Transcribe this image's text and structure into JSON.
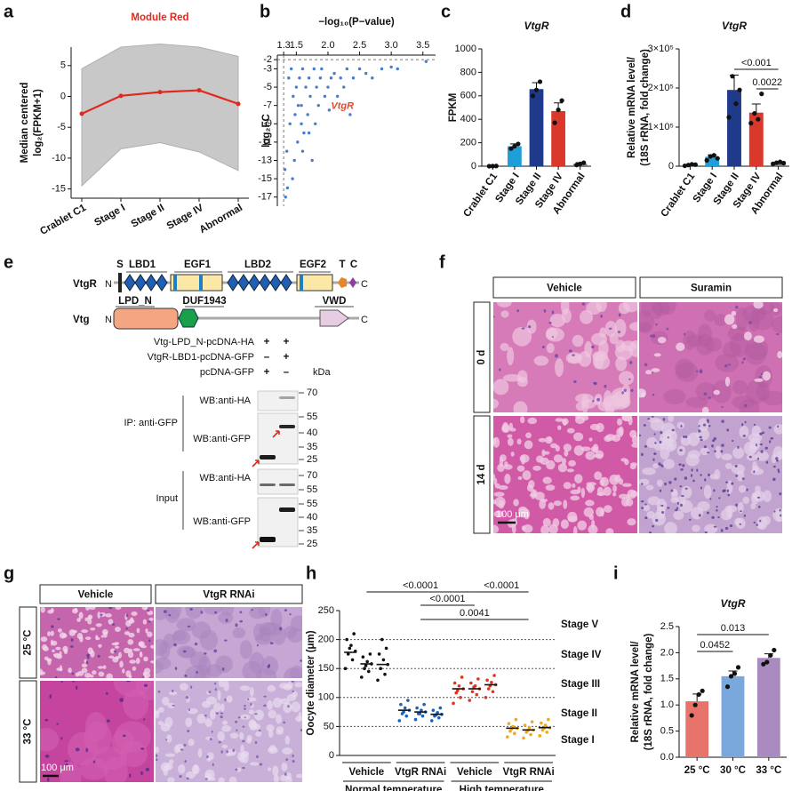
{
  "panel_labels": [
    "a",
    "b",
    "c",
    "d",
    "e",
    "f",
    "g",
    "h",
    "i"
  ],
  "chart_data": [
    {
      "type": "line",
      "title": "Module Red",
      "ylabel": [
        "Median centered",
        "log₂(FPKM+1)"
      ],
      "categories": [
        "Crablet C1",
        "Stage I",
        "Stage II",
        "Stage IV",
        "Abnormal"
      ],
      "values": [
        -2.8,
        0.1,
        0.7,
        1.0,
        -1.2
      ],
      "color": "#e0281e",
      "envelope": {
        "upper": [
          4.5,
          8,
          8.5,
          8,
          6.5
        ],
        "lower": [
          -14.5,
          -8.5,
          -7.5,
          -9,
          -12
        ],
        "color": "#c8c8c8"
      },
      "ylim": [
        -16.5,
        8
      ],
      "yticks": [
        -15,
        -10,
        -5,
        0,
        5
      ]
    },
    {
      "type": "scatter",
      "xlabel": "−log₁₀(P−value)",
      "ylabel": [
        "log₂FC"
      ],
      "x": [
        1.32,
        1.35,
        1.38,
        1.4,
        1.42,
        1.45,
        1.48,
        1.5,
        1.52,
        1.55,
        1.58,
        1.6,
        1.62,
        1.65,
        1.68,
        1.7,
        1.72,
        1.75,
        1.78,
        1.8,
        1.82,
        1.85,
        1.88,
        1.9,
        1.95,
        2.0,
        2.05,
        2.1,
        2.15,
        2.2,
        2.25,
        2.3,
        2.4,
        2.5,
        2.6,
        2.7,
        2.85,
        3.0,
        3.1,
        3.55,
        1.36,
        1.44,
        1.53,
        1.6,
        1.7,
        1.33,
        1.47,
        1.58,
        2.02,
        2.35
      ],
      "y": [
        -14,
        -12,
        -4,
        -9,
        -3,
        -6,
        -8,
        -5,
        -11,
        -4,
        -7,
        -3,
        -10,
        -5,
        -8,
        -4,
        -6,
        -13,
        -3,
        -9,
        -5,
        -7,
        -4,
        -3,
        -6,
        -5,
        -4,
        -3.5,
        -6,
        -4,
        -5,
        -3,
        -4,
        -3,
        -3.5,
        -4,
        -3,
        -2.8,
        -3,
        -2.2,
        -16,
        -15,
        -7,
        -12,
        -10,
        -17,
        -13,
        -9,
        -7.5,
        -8
      ],
      "color": "#4a7cc9",
      "annotation": "VtgR",
      "annotation_color": "#e04a2a",
      "thresholds": {
        "x": 1.3,
        "y": -2
      },
      "xlim": [
        1.2,
        3.7
      ],
      "xticks": [
        1.3,
        1.5,
        {
          "value": 2,
          "label": "2.0"
        },
        2.5,
        {
          "value": 3,
          "label": "3.0"
        },
        3.5
      ],
      "ylim": [
        -18,
        -1.5
      ],
      "yticks": [
        -2,
        -3,
        -5,
        -7,
        -9,
        -11,
        -13,
        -15,
        -17
      ]
    },
    {
      "type": "bar",
      "title": "VtgR",
      "ylabel": [
        "FPKM"
      ],
      "categories": [
        "Crablet C1",
        "Stage I",
        "Stage II",
        "Stage IV",
        "Abnormal"
      ],
      "values": [
        1,
        170,
        657,
        470,
        20
      ],
      "errors": [
        1,
        20,
        55,
        70,
        10
      ],
      "points": [
        [
          0,
          1,
          2
        ],
        [
          150,
          170,
          190
        ],
        [
          600,
          650,
          720
        ],
        [
          370,
          480,
          560
        ],
        [
          10,
          20,
          30
        ]
      ],
      "colors": [
        "#7f7f7f",
        "#1f9fd9",
        "#1f3a8a",
        "#d9382b",
        "#7f7f7f"
      ],
      "ylim": [
        0,
        1000
      ],
      "yticks": [
        0,
        200,
        400,
        600,
        800,
        1000
      ]
    },
    {
      "type": "bar",
      "title": "VtgR",
      "ylabel": [
        "Relative mRNA level/",
        "(18S rRNA, fold change)"
      ],
      "categories": [
        "Crablet C1",
        "Stage I",
        "Stage II",
        "Stage IV",
        "Abnormal"
      ],
      "values": [
        3000,
        24000,
        195000,
        137000,
        8000
      ],
      "errors": [
        1000,
        5000,
        38000,
        22000,
        1000
      ],
      "points": [
        [
          1000,
          3000,
          5000,
          4000
        ],
        [
          15000,
          25000,
          28000,
          20000
        ],
        [
          125000,
          230000,
          160000,
          195000
        ],
        [
          110000,
          135000,
          120000,
          185000
        ],
        [
          6000,
          9000,
          11000,
          8000
        ]
      ],
      "colors": [
        "#7f7f7f",
        "#1f9fd9",
        "#1f3a8a",
        "#d9382b",
        "#7f7f7f"
      ],
      "comparisons": [
        "<0.001",
        "0.0022"
      ],
      "ylim": [
        0,
        300000
      ],
      "yticks": [
        0,
        {
          "value": 100000,
          "label": "1×10⁵"
        },
        {
          "value": 200000,
          "label": "2×10⁵"
        },
        {
          "value": 300000,
          "label": "3×10⁵"
        }
      ]
    },
    {
      "type": "strip",
      "ylabel": [
        "Oocyte diameter (μm)"
      ],
      "condition_labels": [
        "Vehicle",
        "VtgR RNAi",
        "Vehicle",
        "VtgR RNAi"
      ],
      "temperature_labels": [
        "Normal temperature",
        "High temperature"
      ],
      "colors": [
        "#111111",
        "#1f5fb4",
        "#e0341f",
        "#f0a81c"
      ],
      "medians": [
        178,
        158,
        157,
        78,
        75,
        71,
        115,
        115,
        122,
        47,
        44,
        48
      ],
      "points": [
        [
          150,
          165,
          175,
          180,
          190,
          200,
          210,
          185
        ],
        [
          135,
          145,
          150,
          158,
          162,
          170,
          175,
          155
        ],
        [
          130,
          140,
          150,
          157,
          165,
          175,
          185,
          200
        ],
        [
          60,
          68,
          72,
          78,
          82,
          88,
          95,
          75
        ],
        [
          62,
          68,
          72,
          75,
          78,
          82,
          88,
          72
        ],
        [
          60,
          65,
          68,
          71,
          74,
          78,
          82,
          70
        ],
        [
          90,
          100,
          108,
          115,
          120,
          125,
          135,
          112
        ],
        [
          95,
          105,
          110,
          115,
          120,
          125,
          132,
          118
        ],
        [
          100,
          110,
          115,
          122,
          126,
          130,
          138,
          120
        ],
        [
          32,
          38,
          42,
          47,
          50,
          55,
          62,
          46
        ],
        [
          30,
          36,
          40,
          44,
          48,
          52,
          58,
          43
        ],
        [
          34,
          40,
          44,
          48,
          52,
          56,
          62,
          47
        ]
      ],
      "stage_lines": [
        50,
        100,
        150,
        200
      ],
      "stage_labels": [
        "Stage V",
        "Stage IV",
        "Stage III",
        "Stage II",
        "Stage I"
      ],
      "comparisons": [
        "<0.0001",
        "<0.0001",
        "<0.0001",
        "0.0041"
      ],
      "ylim": [
        0,
        250
      ],
      "yticks": [
        0,
        50,
        100,
        150,
        200,
        250
      ]
    },
    {
      "type": "bar",
      "title": "VtgR",
      "ylabel": [
        "Relative mRNA level/",
        "(18S rRNA, fold change)"
      ],
      "categories": [
        "25 °C",
        "30 °C",
        "33 °C"
      ],
      "values": [
        1.07,
        1.55,
        1.9
      ],
      "errors": [
        0.14,
        0.1,
        0.08
      ],
      "points": [
        [
          0.8,
          1.0,
          1.2,
          1.27
        ],
        [
          1.35,
          1.55,
          1.6,
          1.72
        ],
        [
          1.78,
          1.82,
          1.95,
          2.05
        ]
      ],
      "colors": [
        "#e8736b",
        "#7aa8dc",
        "#a98bc0"
      ],
      "comparisons": [
        "0.0452",
        "0.013"
      ],
      "ylim": [
        0,
        2.5
      ],
      "yticks": [
        {
          "value": 0,
          "label": "0.0"
        },
        0.5,
        {
          "value": 1,
          "label": "1.0"
        },
        1.5,
        {
          "value": 2,
          "label": "2.0"
        },
        2.5
      ]
    }
  ],
  "diagram_e": {
    "vtgr": {
      "label": "VtgR",
      "n": "N",
      "c": "C",
      "domains": [
        "S",
        "LBD1",
        "EGF1",
        "LBD2",
        "EGF2",
        "T",
        "C"
      ]
    },
    "vtg": {
      "label": "Vtg",
      "n": "N",
      "c": "C",
      "domains": [
        "LPD_N",
        "DUF1943",
        "VWD"
      ]
    },
    "constructs": [
      {
        "name": "Vtg-LPD_N-pcDNA-HA",
        "lanes": [
          "+",
          "+"
        ]
      },
      {
        "name": "VtgR-LBD1-pcDNA-GFP",
        "lanes": [
          "–",
          "+"
        ]
      },
      {
        "name": "pcDNA-GFP",
        "lanes": [
          "+",
          "–"
        ]
      }
    ],
    "unit": "kDa",
    "blots": [
      {
        "group": "IP: anti-GFP",
        "rows": [
          {
            "antibody": "WB:anti-HA",
            "markers": [
              70
            ]
          },
          {
            "antibody": "WB:anti-GFP",
            "markers": [
              55,
              40,
              35,
              25
            ]
          }
        ]
      },
      {
        "group": "Input",
        "rows": [
          {
            "antibody": "WB:anti-HA",
            "markers": [
              70,
              55
            ]
          },
          {
            "antibody": "WB:anti-GFP",
            "markers": [
              55,
              40,
              35,
              25
            ]
          }
        ]
      }
    ]
  },
  "histology_f": {
    "columns": [
      "Vehicle",
      "Suramin"
    ],
    "rows": [
      "0 d",
      "14 d"
    ],
    "scale_bar": "100 μm"
  },
  "histology_g": {
    "columns": [
      "Vehicle",
      "VtgR RNAi"
    ],
    "rows": [
      "25 °C",
      "33 °C"
    ],
    "scale_bar": "100 μm"
  }
}
